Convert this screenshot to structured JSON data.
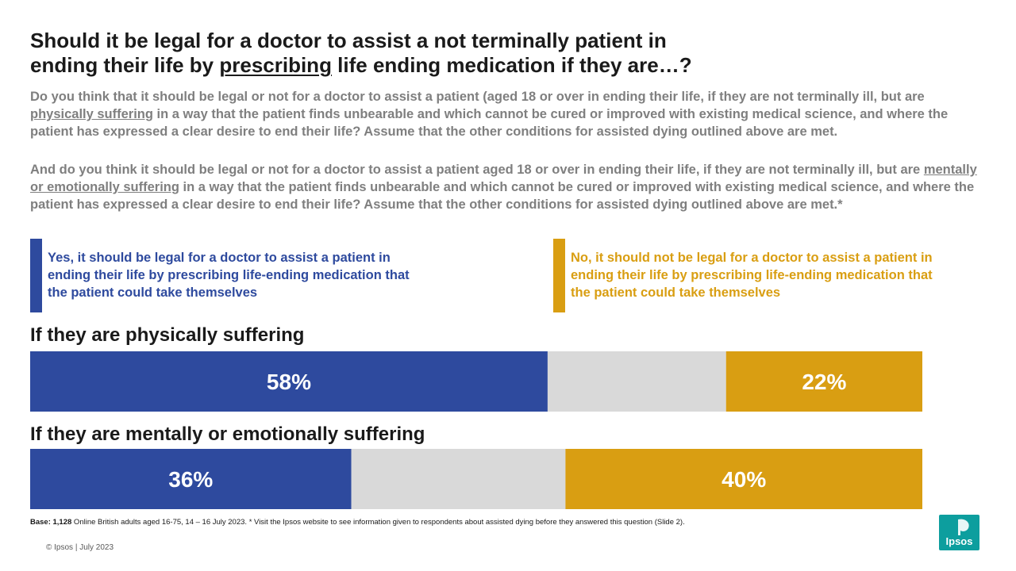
{
  "title": {
    "line1": "Should it be legal for a doctor to assist a not terminally patient in",
    "line2_pre": "ending their life by ",
    "line2_underlined": "prescribing",
    "line2_post": " life ending medication if they are…?"
  },
  "question1": {
    "pre": "Do you think that it should be legal or not for a doctor to assist a patient (aged 18 or over in ending their life, if they are not terminally ill, but are ",
    "underlined": "physically suffering",
    "post": " in a way that the patient finds unbearable and which cannot be cured or improved with existing medical science, and where the patient has expressed a clear desire to end their life? Assume that the other conditions for assisted dying outlined above are met."
  },
  "question2": {
    "pre": "And do you think it should be legal or not for a doctor to assist a patient aged 18 or over in ending their life, if they are not terminally ill, but are ",
    "underlined": "mentally or emotionally suffering",
    "post": " in a way that the patient finds unbearable and which cannot be cured or improved with existing medical science, and where the patient has expressed a clear desire to end their life? Assume that the other conditions for assisted dying outlined above are met.*"
  },
  "legend": {
    "yes": "Yes, it should be legal for a doctor to assist a patient in ending their life by prescribing life-ending medication that the patient could take themselves",
    "no": "No, it should not be legal for a doctor to assist a patient in ending their life by prescribing life-ending medication that the patient could take themselves"
  },
  "colors": {
    "yes": "#2e4a9e",
    "middle": "#d9d9d9",
    "no": "#d99e12"
  },
  "chart_data": {
    "type": "bar",
    "orientation": "horizontal",
    "stacked": true,
    "categories": [
      "If they are physically suffering",
      "If they are mentally or emotionally suffering"
    ],
    "series": [
      {
        "name": "Yes, it should be legal for a doctor to assist a patient in ending their life by prescribing life-ending medication that the patient could take themselves",
        "values": [
          58,
          36
        ],
        "labels": [
          "58%",
          "36%"
        ]
      },
      {
        "values": [
          20,
          24
        ]
      },
      {
        "name": "No, it should not be legal for a doctor to assist a patient in ending their life by prescribing life-ending medication that the patient could take themselves",
        "values": [
          22,
          40
        ],
        "labels": [
          "22%",
          "40%"
        ]
      }
    ],
    "xlim": [
      0,
      100
    ]
  },
  "footnote": {
    "base_label": "Base: 1,128",
    "text": " Online British adults aged 16-75, 14 – 16 July 2023. * Visit the Ipsos website to see information given to respondents about assisted dying before they answered this question (Slide 2)."
  },
  "copyright": "© Ipsos | July 2023",
  "logo": {
    "text": "Ipsos",
    "color": "#0d9e9e"
  }
}
